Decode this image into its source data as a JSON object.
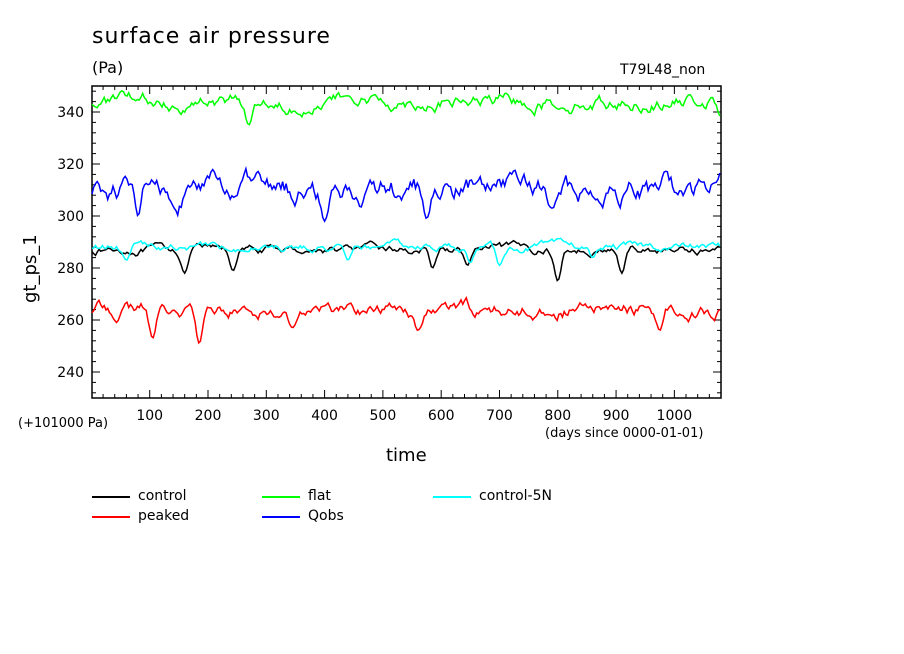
{
  "chart_data": {
    "type": "line",
    "title": "surface air pressure",
    "units": "(Pa)",
    "run_label": "T79L48_non",
    "ylabel": "gt_ps_1",
    "xlabel": "time",
    "x_units": "(days since 0000-01-01)",
    "offset_label": "(+101000 Pa)",
    "xlim": [
      1,
      1080
    ],
    "ylim": [
      230,
      350
    ],
    "x_ticks": [
      "100",
      "200",
      "300",
      "400",
      "500",
      "600",
      "700",
      "800",
      "900",
      "1000"
    ],
    "y_ticks": [
      "240",
      "260",
      "280",
      "300",
      "320",
      "340"
    ],
    "grid": false,
    "legend_position": "bottom",
    "series": [
      {
        "name": "control",
        "color": "#000000",
        "mean": 287,
        "amp": 2.5,
        "lowdips": [
          [
            160,
            278
          ],
          [
            243,
            279
          ],
          [
            585,
            280
          ],
          [
            645,
            281
          ],
          [
            800,
            275
          ],
          [
            910,
            278
          ]
        ]
      },
      {
        "name": "peaked",
        "color": "#ff0000",
        "mean": 264,
        "amp": 4.5,
        "lowdips": [
          [
            105,
            253
          ],
          [
            185,
            251
          ],
          [
            345,
            257
          ],
          [
            560,
            256
          ],
          [
            975,
            256
          ]
        ]
      },
      {
        "name": "flat",
        "color": "#00ff00",
        "mean": 344,
        "amp": 4.5,
        "lowdips": [
          [
            270,
            335
          ],
          [
            1080,
            338
          ]
        ]
      },
      {
        "name": "Qobs",
        "color": "#0000ff",
        "mean": 310,
        "amp": 8,
        "lowdips": [
          [
            80,
            300
          ],
          [
            400,
            298
          ],
          [
            575,
            299
          ],
          [
            790,
            303
          ]
        ]
      },
      {
        "name": "control-5N",
        "color": "#00ffff",
        "mean": 288,
        "amp": 2.5,
        "lowdips": [
          [
            60,
            283
          ],
          [
            440,
            283
          ],
          [
            650,
            282
          ],
          [
            700,
            281
          ],
          [
            860,
            284
          ]
        ]
      }
    ]
  }
}
